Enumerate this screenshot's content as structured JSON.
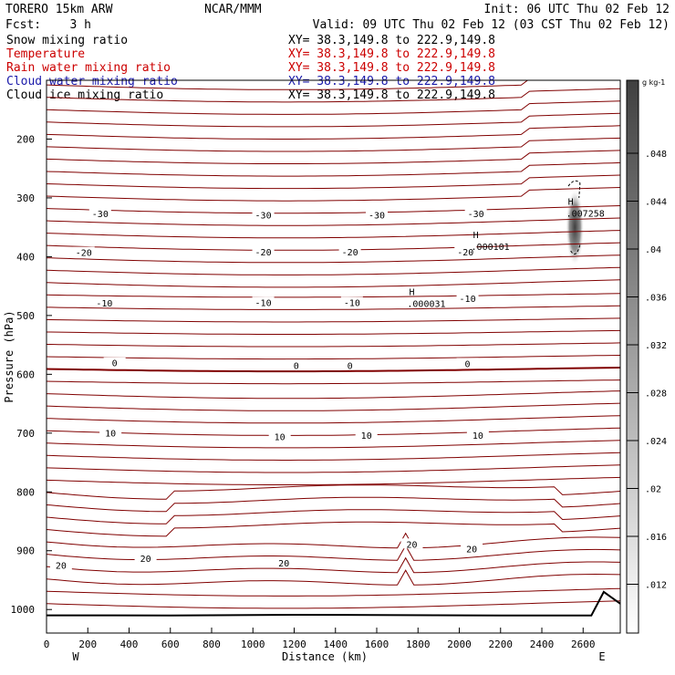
{
  "header": {
    "model": "TORERO  15km ARW",
    "org": "NCAR/MMM",
    "init": "Init: 06 UTC Thu 02 Feb 12",
    "fcst": "Fcst:    3 h",
    "valid": "Valid: 09 UTC Thu 02 Feb 12 (03 CST Thu 02 Feb 12)"
  },
  "legend": [
    {
      "label": "Snow mixing ratio",
      "xy": "XY=  38.3,149.8 to 222.9,149.8",
      "color": "#000000"
    },
    {
      "label": "Temperature",
      "xy": "XY=  38.3,149.8 to 222.9,149.8",
      "color": "#cc0000"
    },
    {
      "label": "Rain water mixing ratio",
      "xy": "XY=  38.3,149.8 to 222.9,149.8",
      "color": "#cc0000"
    },
    {
      "label": "Cloud water mixing ratio",
      "xy": "XY=  38.3,149.8 to 222.9,149.8",
      "color": "#1a1aaa"
    },
    {
      "label": "Cloud ice mixing ratio",
      "xy": "XY=  38.3,149.8 to 222.9,149.8",
      "color": "#000000"
    }
  ],
  "chart_data": {
    "type": "cross-section contour",
    "xlabel": "Distance (km)",
    "ylabel": "Pressure (hPa)",
    "xlim": [
      0,
      2780
    ],
    "ylim": [
      1040,
      100
    ],
    "x_ticks": [
      0,
      200,
      400,
      600,
      800,
      1000,
      1200,
      1400,
      1600,
      1800,
      2000,
      2200,
      2400,
      2600
    ],
    "y_ticks": [
      200,
      300,
      400,
      500,
      600,
      700,
      800,
      900,
      1000
    ],
    "x_end_labels": {
      "left": "W",
      "right": "E"
    },
    "contour_color": "#800000",
    "isotherm_labels": [
      {
        "text": "-30",
        "x": 260,
        "p": 328
      },
      {
        "text": "-30",
        "x": 1050,
        "p": 330
      },
      {
        "text": "-30",
        "x": 1600,
        "p": 330
      },
      {
        "text": "-30",
        "x": 2080,
        "p": 328
      },
      {
        "text": "-20",
        "x": 180,
        "p": 394
      },
      {
        "text": "-20",
        "x": 1050,
        "p": 393
      },
      {
        "text": "-20",
        "x": 1470,
        "p": 393
      },
      {
        "text": "-20",
        "x": 2030,
        "p": 393
      },
      {
        "text": "-10",
        "x": 280,
        "p": 480
      },
      {
        "text": "-10",
        "x": 1050,
        "p": 479
      },
      {
        "text": "-10",
        "x": 1480,
        "p": 479
      },
      {
        "text": "-10",
        "x": 2040,
        "p": 472
      },
      {
        "text": "0",
        "x": 330,
        "p": 582
      },
      {
        "text": "0",
        "x": 1210,
        "p": 586
      },
      {
        "text": "0",
        "x": 1470,
        "p": 586
      },
      {
        "text": "0",
        "x": 2040,
        "p": 583
      },
      {
        "text": "10",
        "x": 310,
        "p": 701
      },
      {
        "text": "10",
        "x": 1130,
        "p": 707
      },
      {
        "text": "10",
        "x": 1550,
        "p": 705
      },
      {
        "text": "10",
        "x": 2090,
        "p": 705
      },
      {
        "text": "20",
        "x": 70,
        "p": 926
      },
      {
        "text": "20",
        "x": 480,
        "p": 914
      },
      {
        "text": "20",
        "x": 1150,
        "p": 922
      },
      {
        "text": "20",
        "x": 1770,
        "p": 890
      },
      {
        "text": "20",
        "x": 2060,
        "p": 898
      }
    ],
    "maxima": [
      {
        "marker": "H",
        "value": ".000031",
        "x": 1770,
        "p": 465
      },
      {
        "marker": "H",
        "value": ".000101",
        "x": 2080,
        "p": 368
      },
      {
        "marker": "H",
        "value": ".007258",
        "x": 2540,
        "p": 312
      }
    ],
    "colorbar": {
      "unit": "g kg-1",
      "ticks": [
        ".048",
        ".044",
        ".04",
        ".036",
        ".032",
        ".028",
        ".024",
        ".02",
        ".016",
        ".012"
      ]
    },
    "terrain": "near sea level with small rise to ~970 hPa near 2700 km"
  }
}
